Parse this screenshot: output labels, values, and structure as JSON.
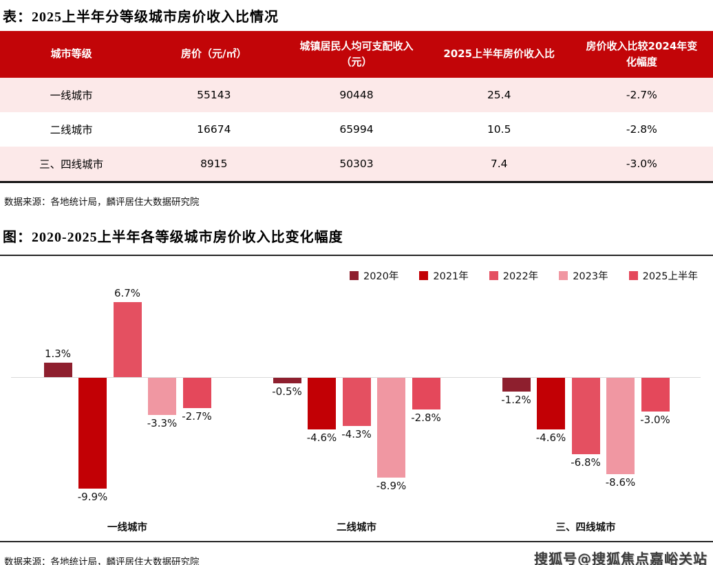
{
  "table": {
    "title": "表：2025上半年分等级城市房价收入比情况",
    "columns": [
      "城市等级",
      "房价（元/㎡）",
      "城镇居民人均可支配收入（元）",
      "2025上半年房价收入比",
      "房价收入比较2024年变化幅度"
    ],
    "rows": [
      [
        "一线城市",
        "55143",
        "90448",
        "25.4",
        "-2.7%"
      ],
      [
        "二线城市",
        "16674",
        "65994",
        "10.5",
        "-2.8%"
      ],
      [
        "三、四线城市",
        "8915",
        "50303",
        "7.4",
        "-3.0%"
      ]
    ],
    "source": "数据来源：各地统计局，麟评居住大数据研究院"
  },
  "figure": {
    "title": "图：2020-2025上半年各等级城市房价收入比变化幅度",
    "source": "数据来源：各地统计局，麟评居住大数据研究院"
  },
  "watermark": "搜狐号@搜狐焦点嘉峪关站",
  "colors": {
    "table_header_red": "#C20508",
    "table_row_pink": "#FCE9E9",
    "zero_line_gray": "#D9D9D9",
    "rule_dark": "#222222"
  },
  "chart_data": {
    "type": "bar",
    "title": "图：2020-2025上半年各等级城市房价收入比变化幅度",
    "categories": [
      "一线城市",
      "二线城市",
      "三、四线城市"
    ],
    "series": [
      {
        "name": "2020年",
        "color": "#8E1F2E",
        "values": [
          1.3,
          -0.5,
          -1.2
        ]
      },
      {
        "name": "2021年",
        "color": "#C20005",
        "values": [
          -9.9,
          -4.6,
          -4.6
        ]
      },
      {
        "name": "2022年",
        "color": "#E45061",
        "values": [
          6.7,
          -4.3,
          -6.8
        ]
      },
      {
        "name": "2023年",
        "color": "#F097A2",
        "values": [
          -3.3,
          -8.9,
          -8.6
        ]
      },
      {
        "name": "2025上半年",
        "color": "#E4485B",
        "values": [
          -2.7,
          -2.8,
          -3.0
        ]
      }
    ],
    "value_suffix": "%",
    "ylim": [
      -11,
      8
    ],
    "grid": false,
    "zero_line": true,
    "legend_position": "top-right",
    "data_labels": "one-decimal-percent"
  }
}
